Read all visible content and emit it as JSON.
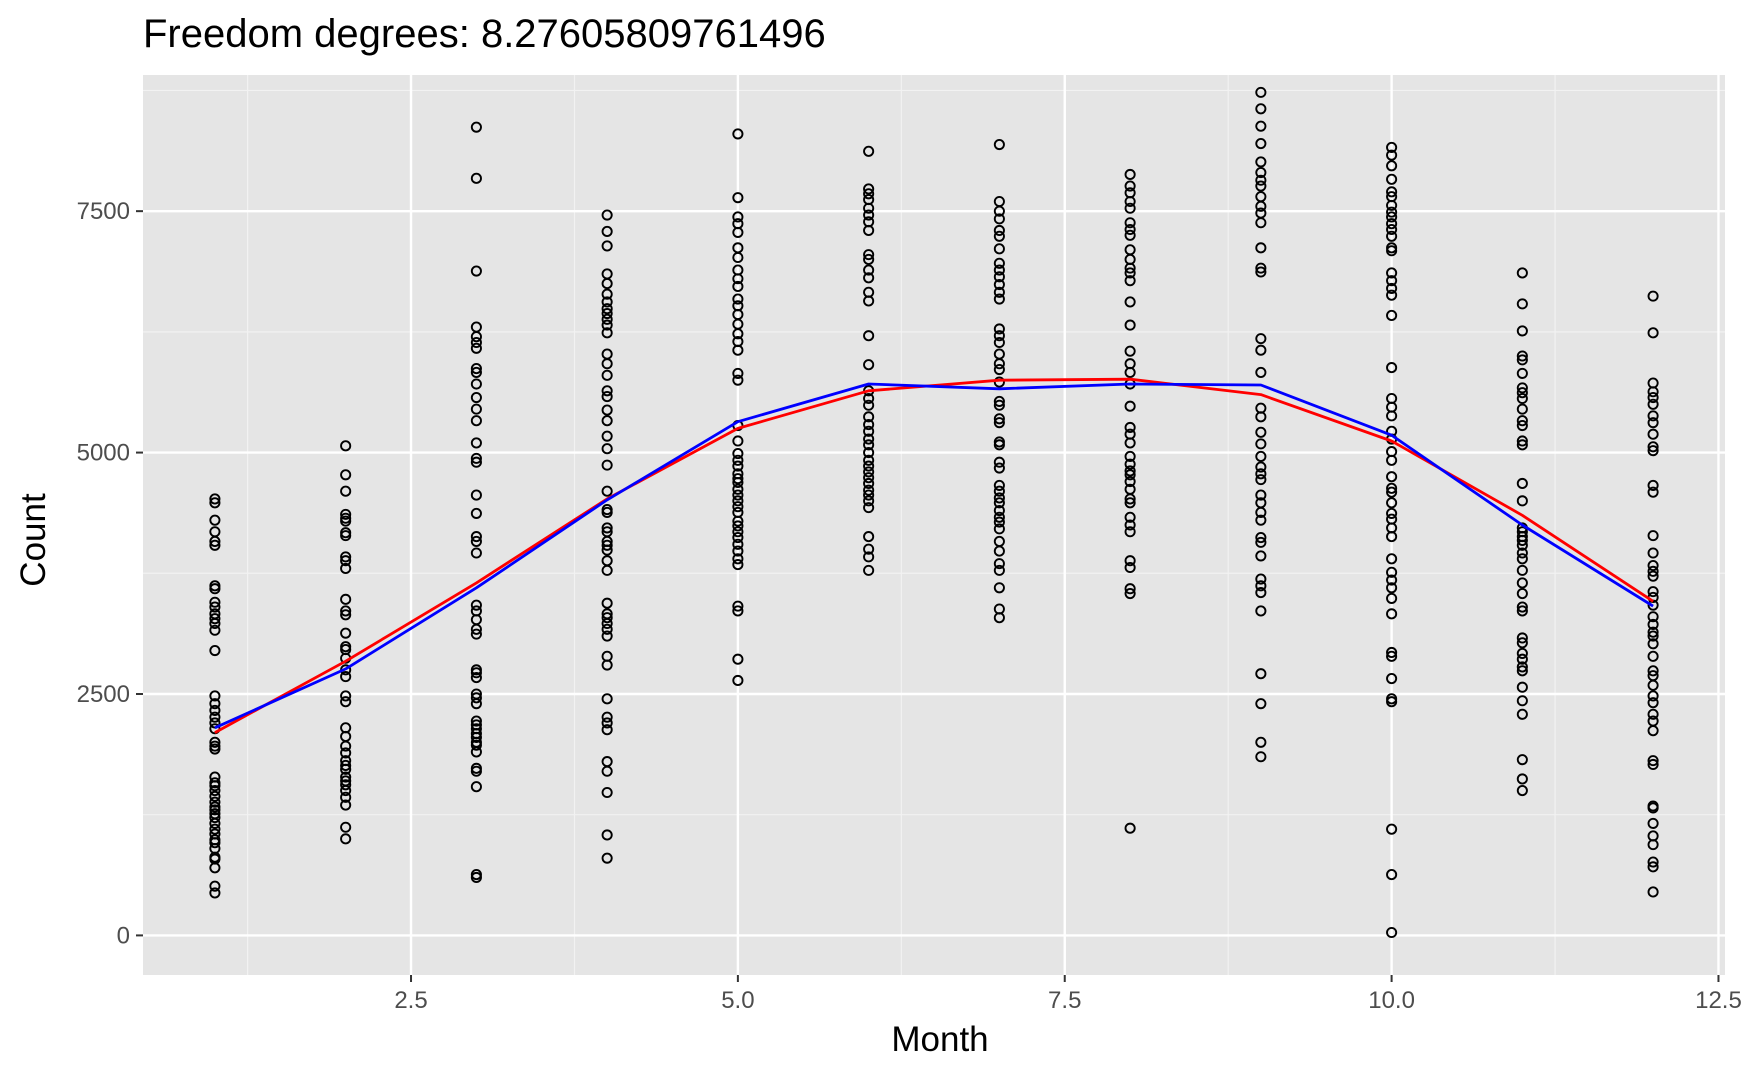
{
  "chart_data": {
    "type": "scatter",
    "title": "Freedom degrees: 8.27605809761496",
    "xlabel": "Month",
    "ylabel": "Count",
    "xlim": [
      0.45,
      12.55
    ],
    "ylim": [
      -410,
      8910
    ],
    "x_ticks": [
      2.5,
      5.0,
      7.5,
      10.0,
      12.5
    ],
    "x_tick_labels": [
      "2.5",
      "5.0",
      "7.5",
      "10.0",
      "12.5"
    ],
    "y_ticks": [
      0,
      2500,
      5000,
      7500
    ],
    "y_tick_labels": [
      "0",
      "2500",
      "5000",
      "7500"
    ],
    "grid": true,
    "background": "#e5e5e5",
    "point_color": "#000000",
    "points": [
      {
        "x": 1,
        "y": [
          4520,
          4480,
          4300,
          4180,
          4080,
          4040,
          3620,
          3590,
          3450,
          3400,
          3330,
          3280,
          3230,
          3160,
          2950,
          2480,
          2400,
          2330,
          2260,
          2200,
          2140,
          2000,
          1960,
          1930,
          1640,
          1580,
          1550,
          1500,
          1440,
          1380,
          1330,
          1300,
          1260,
          1220,
          1160,
          1100,
          1050,
          990,
          960,
          900,
          810,
          790,
          700,
          510,
          440
        ]
      },
      {
        "x": 2,
        "y": [
          5070,
          4770,
          4600,
          4360,
          4320,
          4290,
          4170,
          4140,
          3920,
          3880,
          3800,
          3480,
          3360,
          3320,
          3130,
          2990,
          2960,
          2870,
          2750,
          2680,
          2480,
          2420,
          2150,
          2060,
          1960,
          1890,
          1810,
          1760,
          1720,
          1640,
          1600,
          1560,
          1500,
          1430,
          1350,
          1120,
          1000
        ]
      },
      {
        "x": 3,
        "y": [
          8370,
          7840,
          6880,
          6300,
          6200,
          6140,
          6080,
          5870,
          5830,
          5710,
          5570,
          5450,
          5330,
          5100,
          4940,
          4900,
          4560,
          4370,
          4130,
          4080,
          3960,
          3420,
          3360,
          3270,
          3170,
          3120,
          2750,
          2720,
          2670,
          2500,
          2460,
          2400,
          2220,
          2180,
          2140,
          2090,
          2050,
          2000,
          1970,
          1900,
          1730,
          1700,
          1540,
          630,
          600
        ]
      },
      {
        "x": 4,
        "y": [
          7460,
          7290,
          7140,
          6850,
          6750,
          6640,
          6560,
          6490,
          6440,
          6380,
          6320,
          6240,
          6020,
          5920,
          5800,
          5640,
          5580,
          5440,
          5330,
          5170,
          5040,
          4870,
          4600,
          4410,
          4380,
          4220,
          4180,
          4080,
          4040,
          3990,
          3880,
          3780,
          3440,
          3330,
          3290,
          3230,
          3170,
          3100,
          2890,
          2800,
          2450,
          2260,
          2200,
          2130,
          1800,
          1700,
          1480,
          1040,
          800
        ]
      },
      {
        "x": 5,
        "y": [
          8300,
          7640,
          7440,
          7370,
          7280,
          7120,
          7020,
          6890,
          6800,
          6720,
          6590,
          6520,
          6430,
          6330,
          6230,
          6150,
          6060,
          5820,
          5750,
          5280,
          5120,
          4990,
          4920,
          4860,
          4780,
          4730,
          4690,
          4620,
          4560,
          4500,
          4440,
          4380,
          4290,
          4240,
          4180,
          4120,
          4050,
          3980,
          3900,
          3840,
          3410,
          3360,
          2860,
          2640
        ]
      },
      {
        "x": 6,
        "y": [
          8120,
          7730,
          7680,
          7620,
          7530,
          7460,
          7390,
          7300,
          7050,
          7000,
          6890,
          6810,
          6660,
          6570,
          6210,
          5910,
          5640,
          5560,
          5490,
          5370,
          5290,
          5220,
          5140,
          5080,
          5000,
          4920,
          4860,
          4800,
          4740,
          4680,
          4610,
          4560,
          4500,
          4430,
          4130,
          4000,
          3920,
          3780
        ]
      },
      {
        "x": 7,
        "y": [
          8190,
          7600,
          7500,
          7420,
          7300,
          7240,
          7110,
          6960,
          6890,
          6820,
          6740,
          6660,
          6590,
          6280,
          6210,
          6140,
          6020,
          5920,
          5860,
          5730,
          5530,
          5490,
          5350,
          5310,
          5110,
          5080,
          4900,
          4840,
          4660,
          4600,
          4530,
          4480,
          4400,
          4330,
          4280,
          4210,
          4080,
          3980,
          3850,
          3780,
          3600,
          3380,
          3290
        ]
      },
      {
        "x": 8,
        "y": [
          7880,
          7760,
          7690,
          7600,
          7530,
          7380,
          7310,
          7250,
          7100,
          7000,
          6910,
          6860,
          6780,
          6560,
          6320,
          6050,
          5920,
          5830,
          5710,
          5480,
          5260,
          5190,
          5100,
          4960,
          4880,
          4810,
          4770,
          4700,
          4620,
          4520,
          4480,
          4330,
          4250,
          4180,
          3880,
          3810,
          3590,
          3540,
          1110
        ]
      },
      {
        "x": 9,
        "y": [
          8730,
          8560,
          8380,
          8200,
          8010,
          7900,
          7820,
          7760,
          7650,
          7550,
          7480,
          7380,
          7120,
          6910,
          6870,
          6180,
          6060,
          5830,
          5460,
          5370,
          5210,
          5090,
          4960,
          4850,
          4780,
          4720,
          4560,
          4480,
          4380,
          4300,
          4120,
          4070,
          3930,
          3690,
          3620,
          3550,
          3360,
          2710,
          2400,
          2000,
          1850
        ]
      },
      {
        "x": 10,
        "y": [
          8160,
          8080,
          7970,
          7830,
          7700,
          7650,
          7560,
          7490,
          7440,
          7370,
          7310,
          7240,
          7120,
          7090,
          6860,
          6780,
          6700,
          6630,
          6420,
          5880,
          5560,
          5470,
          5380,
          5220,
          5140,
          5010,
          4920,
          4750,
          4630,
          4590,
          4480,
          4370,
          4310,
          4220,
          4130,
          3900,
          3760,
          3680,
          3600,
          3490,
          3330,
          2930,
          2890,
          2660,
          2450,
          2420,
          1100,
          630,
          30
        ]
      },
      {
        "x": 11,
        "y": [
          6860,
          6540,
          6260,
          6000,
          5960,
          5820,
          5670,
          5620,
          5560,
          5450,
          5330,
          5280,
          5120,
          5080,
          4680,
          4500,
          4220,
          4180,
          4130,
          4090,
          4040,
          3960,
          3900,
          3780,
          3650,
          3540,
          3400,
          3360,
          3080,
          3030,
          2920,
          2860,
          2780,
          2740,
          2570,
          2430,
          2290,
          1820,
          1620,
          1500
        ]
      },
      {
        "x": 12,
        "y": [
          6620,
          6240,
          5720,
          5630,
          5570,
          5500,
          5380,
          5310,
          5190,
          5060,
          5020,
          4660,
          4590,
          4140,
          3960,
          3830,
          3770,
          3720,
          3560,
          3500,
          3420,
          3300,
          3220,
          3140,
          3100,
          3020,
          2890,
          2740,
          2690,
          2590,
          2480,
          2410,
          2290,
          2220,
          2120,
          1810,
          1770,
          1340,
          1320,
          1160,
          1030,
          940,
          760,
          710,
          450
        ]
      }
    ],
    "series": [
      {
        "color": "#ff0000",
        "x": [
          1,
          2,
          3,
          4,
          5,
          6,
          7,
          8,
          9,
          10,
          11,
          12
        ],
        "y": [
          2100,
          2840,
          3650,
          4520,
          5250,
          5640,
          5750,
          5760,
          5600,
          5120,
          4350,
          3460
        ]
      },
      {
        "color": "#0000ff",
        "x": [
          1,
          2,
          3,
          4,
          5,
          6,
          7,
          8,
          9,
          10,
          11,
          12
        ],
        "y": [
          2150,
          2760,
          3600,
          4510,
          5320,
          5710,
          5660,
          5710,
          5700,
          5180,
          4250,
          3410
        ]
      }
    ]
  }
}
